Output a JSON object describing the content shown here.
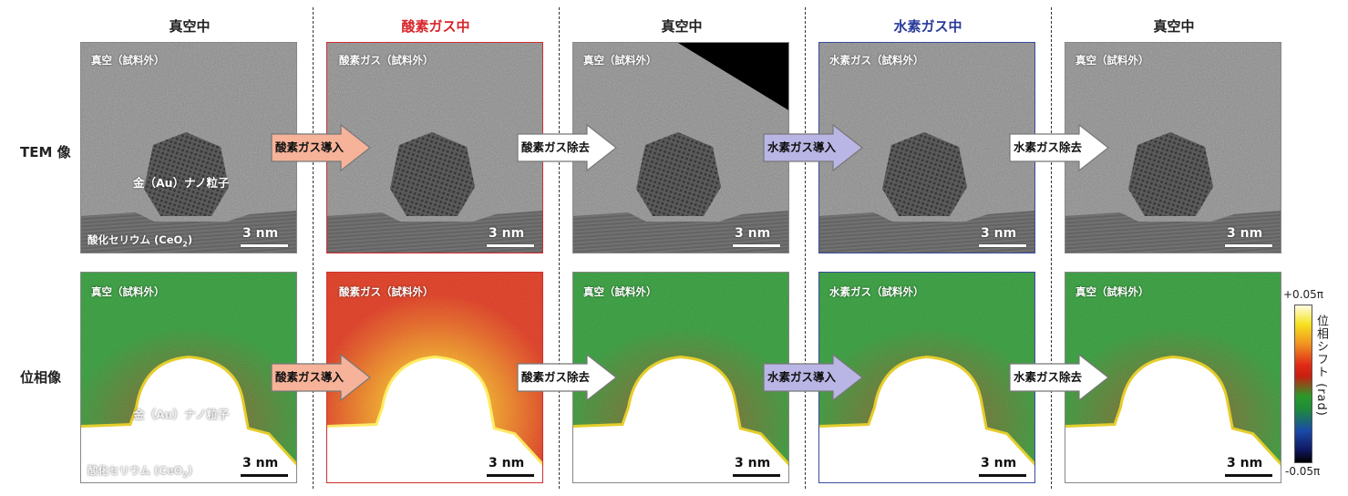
{
  "columns": [
    {
      "title": "真空中",
      "title_color": "#222222"
    },
    {
      "title": "酸素ガス中",
      "title_color": "#d8262c"
    },
    {
      "title": "真空中",
      "title_color": "#222222"
    },
    {
      "title": "水素ガス中",
      "title_color": "#2a3a9a"
    },
    {
      "title": "真空中",
      "title_color": "#222222"
    }
  ],
  "row_labels": {
    "tem": "TEM 像",
    "phase": "位相像"
  },
  "panel_labels": {
    "vacuum": "真空（試料外）",
    "oxygen": "酸素ガス（試料外）",
    "hydrogen": "水素ガス（試料外）",
    "particle": "金（Au）ナノ粒子",
    "substrate_prefix": "酸化セリウム (CeO",
    "substrate_sub": "2",
    "substrate_suffix": ")"
  },
  "scale_bar": "3 nm",
  "arrows": [
    {
      "label": "酸素ガス導入",
      "fill": "#f6b39a"
    },
    {
      "label": "酸素ガス除去",
      "fill": "#ffffff"
    },
    {
      "label": "水素ガス導入",
      "fill": "#b9b6e6"
    },
    {
      "label": "水素ガス除去",
      "fill": "#ffffff"
    }
  ],
  "colorbar": {
    "max": "+0.05π",
    "min": "-0.05π",
    "title": "位相シフト (rad)"
  }
}
